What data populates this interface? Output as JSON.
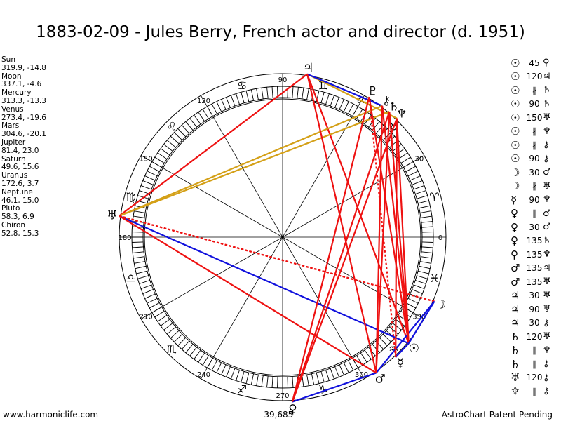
{
  "title": "1883-02-09 - Jules Berry, French actor and director (d. 1951)",
  "positions": [
    {
      "name": "Sun",
      "coords": "319.9, -14.8"
    },
    {
      "name": "Moon",
      "coords": "337.1, -4.6"
    },
    {
      "name": "Mercury",
      "coords": "313.3, -13.3"
    },
    {
      "name": "Venus",
      "coords": "273.4, -19.6"
    },
    {
      "name": "Mars",
      "coords": "304.6, -20.1"
    },
    {
      "name": "Jupiter",
      "coords": "81.4, 23.0"
    },
    {
      "name": "Saturn",
      "coords": "49.6, 15.6"
    },
    {
      "name": "Uranus",
      "coords": "172.6, 3.7"
    },
    {
      "name": "Neptune",
      "coords": "46.1, 15.0"
    },
    {
      "name": "Pluto",
      "coords": "58.3, 6.9"
    },
    {
      "name": "Chiron",
      "coords": "52.8, 15.3"
    }
  ],
  "aspects": [
    {
      "p1": "☉",
      "angle": "45",
      "p2": "♀"
    },
    {
      "p1": "☉",
      "angle": "120",
      "p2": "♃"
    },
    {
      "p1": "☉",
      "angle": "∦",
      "p2": "♄"
    },
    {
      "p1": "☉",
      "angle": "90",
      "p2": "♄"
    },
    {
      "p1": "☉",
      "angle": "150",
      "p2": "♅"
    },
    {
      "p1": "☉",
      "angle": "∦",
      "p2": "♆"
    },
    {
      "p1": "☉",
      "angle": "∦",
      "p2": "⚷"
    },
    {
      "p1": "☉",
      "angle": "90",
      "p2": "⚷"
    },
    {
      "p1": "☽",
      "angle": "30",
      "p2": "♂"
    },
    {
      "p1": "☽",
      "angle": "∦",
      "p2": "♅"
    },
    {
      "p1": "☿",
      "angle": "90",
      "p2": "♆"
    },
    {
      "p1": "♀",
      "angle": "∥",
      "p2": "♂"
    },
    {
      "p1": "♀",
      "angle": "30",
      "p2": "♂"
    },
    {
      "p1": "♀",
      "angle": "135",
      "p2": "♄"
    },
    {
      "p1": "♀",
      "angle": "135",
      "p2": "♆"
    },
    {
      "p1": "♂",
      "angle": "135",
      "p2": "♃"
    },
    {
      "p1": "♂",
      "angle": "135",
      "p2": "♅"
    },
    {
      "p1": "♃",
      "angle": "30",
      "p2": "♅"
    },
    {
      "p1": "♃",
      "angle": "90",
      "p2": "♅"
    },
    {
      "p1": "♃",
      "angle": "30",
      "p2": "⚷"
    },
    {
      "p1": "♄",
      "angle": "120",
      "p2": "♅"
    },
    {
      "p1": "♄",
      "angle": "∥",
      "p2": "♆"
    },
    {
      "p1": "♄",
      "angle": "∥",
      "p2": "⚷"
    },
    {
      "p1": "♅",
      "angle": "120",
      "p2": "⚷"
    },
    {
      "p1": "♆",
      "angle": "∥",
      "p2": "⚷"
    }
  ],
  "degree_labels": [
    "0",
    "30",
    "60",
    "90",
    "120",
    "150",
    "180",
    "210",
    "240",
    "270",
    "300",
    "330"
  ],
  "footer": {
    "left": "www.harmoniclife.com",
    "center": "-39,685",
    "right": "AstroChart Patent Pending"
  },
  "colors": {
    "red": "#ee1111",
    "blue": "#1111dd",
    "gold": "#d4a017",
    "ink": "#000000"
  }
}
